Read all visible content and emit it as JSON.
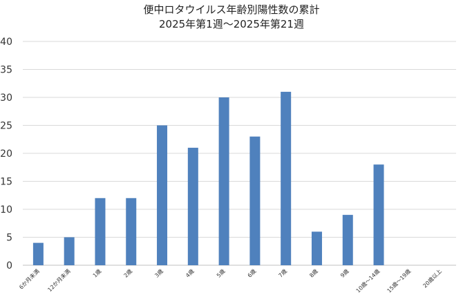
{
  "chart_data": {
    "type": "bar",
    "title": "便中ロタウイルス年齢別陽性数の累計",
    "subtitle": "2025年第1週〜2025年第21週",
    "categories": [
      "6か月未満",
      "12か月未満",
      "1歳",
      "2歳",
      "3歳",
      "4歳",
      "5歳",
      "6歳",
      "7歳",
      "8歳",
      "9歳",
      "10歳〜14歳",
      "15歳〜19歳",
      "20歳以上"
    ],
    "values": [
      4,
      5,
      12,
      12,
      25,
      21,
      30,
      23,
      31,
      6,
      9,
      18,
      0,
      0
    ],
    "ylim": [
      0,
      40
    ],
    "yticks": [
      "0",
      "5",
      "10",
      "15",
      "20",
      "25",
      "30",
      "35",
      "40"
    ],
    "xlabel": "",
    "ylabel": "",
    "grid": true,
    "bar_color": "#4f81bd",
    "grid_color": "#d9d9d9"
  }
}
